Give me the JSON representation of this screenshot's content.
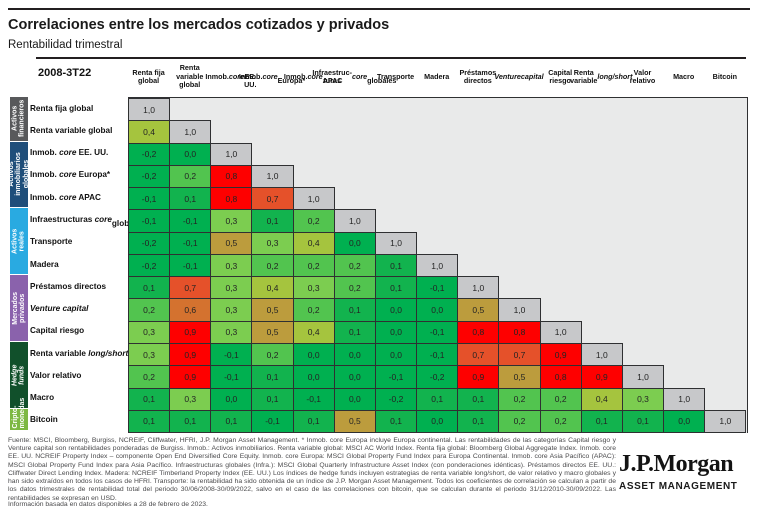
{
  "chart_data": {
    "type": "heatmap",
    "title": "Correlaciones entre los mercados cotizados y privados",
    "subtitle": "Rentabilidad trimestral",
    "period_label": "2008-3T22",
    "value_format": "correlation coefficients, one decimal, comma as decimal separator, lower triangle only",
    "categories": [
      "Renta fija global",
      "Renta variable global",
      "Inmob. core EE. UU.",
      "Inmob. core Europa*",
      "Inmob. core APAC",
      "Infraestructuras core globales",
      "Transporte",
      "Madera",
      "Préstamos directos",
      "Venture capital",
      "Capital riesgo",
      "Renta variable long/short",
      "Valor relativo",
      "Macro",
      "Bitcoin"
    ],
    "column_headers": [
      "Renta fija\nglobal",
      "Renta\nvariable\nglobal",
      "Inmob. _core_\nEE. UU.",
      "Inmob. _core_\nEuropa*",
      "Inmob. _core_\nAPAC",
      "Infraestruc-\nturas _core_\nglobales",
      "Transporte",
      "Madera",
      "Préstamos\ndirectos",
      "_Venture_\n_capital_",
      "Capital\nriesgo",
      "Renta\nvariable\n_long/short_",
      "Valor\nrelativo",
      "Macro",
      "Bitcoin"
    ],
    "row_labels": [
      "Renta fija global",
      "Renta variable global",
      "Inmob. _core_ EE. UU.",
      "Inmob. _core_ Europa*",
      "Inmob. _core_ APAC",
      "Infraestructuras _core_\nglobales",
      "Transporte",
      "Madera",
      "Préstamos directos",
      "_Venture capital_",
      "Capital riesgo",
      "Renta variable _long/short_",
      "Valor relativo",
      "Macro",
      "Bitcoin"
    ],
    "matrix": [
      [
        1.0
      ],
      [
        0.4,
        1.0
      ],
      [
        -0.2,
        0.0,
        1.0
      ],
      [
        -0.2,
        0.2,
        0.8,
        1.0
      ],
      [
        -0.1,
        0.1,
        0.8,
        0.7,
        1.0
      ],
      [
        -0.1,
        -0.1,
        0.3,
        0.1,
        0.2,
        1.0
      ],
      [
        -0.2,
        -0.1,
        0.5,
        0.3,
        0.4,
        0.0,
        1.0
      ],
      [
        -0.2,
        -0.1,
        0.3,
        0.2,
        0.2,
        0.2,
        0.1,
        1.0
      ],
      [
        0.1,
        0.7,
        0.3,
        0.4,
        0.3,
        0.2,
        0.1,
        -0.1,
        1.0
      ],
      [
        0.2,
        0.6,
        0.3,
        0.5,
        0.2,
        0.1,
        0.0,
        0.0,
        0.5,
        1.0
      ],
      [
        0.3,
        0.9,
        0.3,
        0.5,
        0.4,
        0.1,
        0.0,
        -0.1,
        0.8,
        0.8,
        1.0
      ],
      [
        0.3,
        0.9,
        -0.1,
        0.2,
        0.0,
        0.0,
        0.0,
        -0.1,
        0.7,
        0.7,
        0.9,
        1.0
      ],
      [
        0.2,
        0.9,
        -0.1,
        0.1,
        0.0,
        0.0,
        -0.1,
        -0.2,
        0.9,
        0.5,
        0.8,
        0.9,
        1.0
      ],
      [
        0.1,
        0.3,
        0.0,
        0.1,
        -0.1,
        0.0,
        -0.2,
        0.1,
        0.1,
        0.2,
        0.2,
        0.4,
        0.3,
        1.0
      ],
      [
        0.1,
        0.1,
        0.1,
        -0.1,
        0.1,
        0.5,
        0.1,
        0.0,
        0.1,
        0.2,
        0.2,
        0.1,
        0.1,
        0.0,
        1.0
      ]
    ],
    "colors": {
      "-0.2": "#00b050",
      "-0.1": "#00b050",
      "0.0": "#00b050",
      "0.1": "#12b34e",
      "0.2": "#52c44f",
      "0.3": "#7ccd50",
      "0.4": "#a5c43e",
      "0.5": "#bc9c3d",
      "0.6": "#d4722f",
      "0.7": "#e5512a",
      "0.8": "#fe0000",
      "0.9": "#fe0000",
      "1.0": "#c7c8ca"
    },
    "upper_triangle_background": "#e9eaea",
    "groups": [
      {
        "label": "Activos\nfinancieros",
        "rows": 2,
        "color": "#58595b",
        "italic": false
      },
      {
        "label": "Activos\ninmobiliarios\nglobales",
        "rows": 3,
        "color": "#1f4e7a",
        "italic": false
      },
      {
        "label": "Activos reales",
        "rows": 3,
        "color": "#29aae1",
        "italic": false
      },
      {
        "label": "Mercados\nprivados",
        "rows": 3,
        "color": "#8a62ac",
        "italic": false
      },
      {
        "label": "Hedge\nfunds",
        "rows": 3,
        "color": "#11502b",
        "italic": true
      },
      {
        "label": "Cripto-\nmonedas",
        "rows": 1,
        "color": "#7db843",
        "italic": false
      }
    ]
  },
  "footer": {
    "text": "Fuente: MSCI, Bloomberg, Burgiss, NCREIF, Cliffwater, HFRI, J.P. Morgan Asset Management. * Inmob. core Europa incluye Europa continental. Las rentabilidades de las categorías Capital riesgo y Venture capital son rentabilidades ponderadas de Burgiss. Inmob.: Activos inmobiliarios. Renta variable global: MSCI AC World Index. Renta fija global: Bloomberg Global Aggregate Index. Inmob. core EE. UU. NCREIF Property Index – componente Open End Diversified Core Equity. Inmob. core Europa: MSCI Global Property Fund Index para Europa Continental. Inmob. core Asia Pacífico (APAC): MSCI Global Property Fund Index para Asia Pacífico. Infraestructuras globales (Infra.): MSCI Global Quarterly Infrastructure Asset Index (con ponderaciones idénticas). Préstamos directos EE. UU.: Cliffwater Direct Lending Index. Madera: NCREIF Timberland Property Index (EE. UU.) Los índices de hedge funds incluyen estrategias de renta variable long/short, de valor relativo y macro globales y han sido extraídos en todos los casos de HFRI. Transporte: la rentabilidad ha sido obtenida de un índice de J.P. Morgan Asset Management. Todos los coeficientes de correlación se calculan a partir de los datos trimestrales de rentabilidad total del periodo 30/06/2008-30/09/2022, salvo en el caso de las correlaciones con bitcoin, que se calculan durante el periodo 31/12/2010-30/09/2022. Las rentabilidades se expresan en USD.",
    "note": "Información basada en datos disponibles a 28 de febrero de 2023.",
    "logo_main": "J.P.Morgan",
    "logo_sub": "ASSET MANAGEMENT"
  }
}
